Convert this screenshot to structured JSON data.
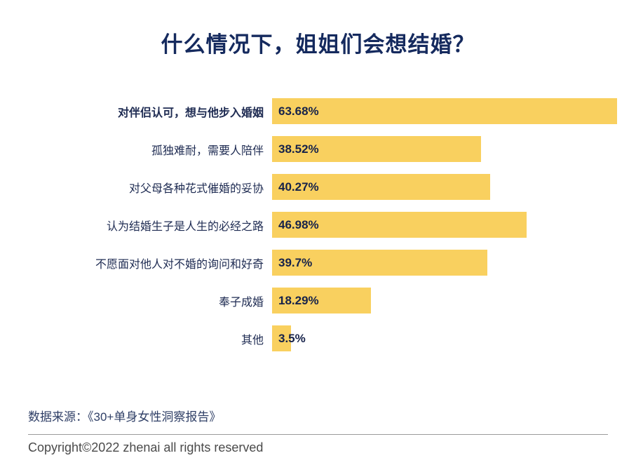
{
  "title": "什么情况下，姐姐们会想结婚？",
  "chart_data": {
    "type": "bar",
    "orientation": "horizontal",
    "title": "什么情况下，姐姐们会想结婚？",
    "categories": [
      "对伴侣认可，想与他步入婚姻",
      "孤独难耐，需要人陪伴",
      "对父母各种花式催婚的妥协",
      "认为结婚生子是人生的必经之路",
      "不愿面对他人对不婚的询问和好奇",
      "奉子成婚",
      "其他"
    ],
    "values": [
      63.68,
      38.52,
      40.27,
      46.98,
      39.7,
      18.29,
      3.5
    ],
    "value_labels": [
      "63.68%",
      "38.52%",
      "40.27%",
      "46.98%",
      "39.7%",
      "18.29%",
      "3.5%"
    ],
    "xlim": [
      0,
      63.68
    ],
    "bar_color": "#f9d05f",
    "label_color": "#1e2b52",
    "value_color": "#16224a",
    "grid": false,
    "legend": false
  },
  "footer": {
    "source": "数据来源：《30+单身女性洞察报告》",
    "copyright": "Copyright©2022  zhenai  all rights reserved"
  }
}
